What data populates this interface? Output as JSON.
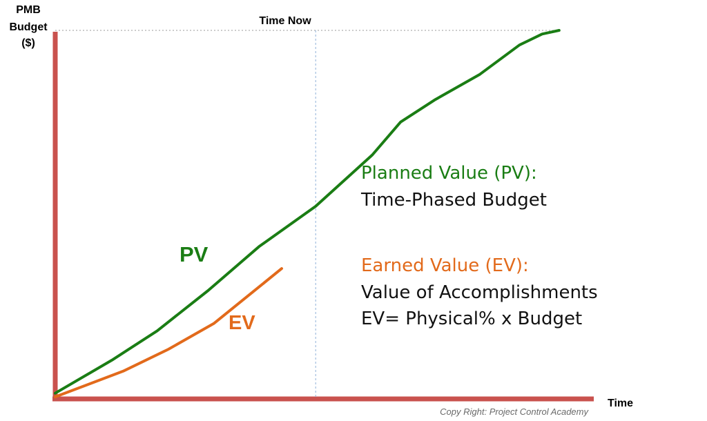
{
  "chart_data": {
    "type": "line",
    "title": "",
    "ylabel_lines": [
      "PMB",
      "Budget",
      "($)"
    ],
    "xlabel": "Time",
    "xlim": [
      0,
      100
    ],
    "ylim": [
      0,
      100
    ],
    "grid": false,
    "time_now": {
      "label": "Time Now",
      "x": 46
    },
    "budget_reference_y": 100,
    "series": [
      {
        "name": "PV",
        "color": "#1a7d14",
        "x": [
          0,
          10,
          18,
          27,
          36,
          46,
          56,
          61,
          67,
          75,
          82,
          86,
          89
        ],
        "y": [
          1,
          10,
          18,
          29,
          41,
          52,
          66,
          75,
          81,
          88,
          96,
          99,
          100
        ]
      },
      {
        "name": "EV",
        "color": "#e26a1b",
        "x": [
          0,
          12,
          20,
          28,
          36,
          40
        ],
        "y": [
          0,
          7,
          13,
          20,
          30,
          35
        ]
      }
    ],
    "annotations": [
      {
        "id": "pv-tag",
        "text": "PV",
        "color": "#1a7d14"
      },
      {
        "id": "ev-tag",
        "text": "EV",
        "color": "#e26a1b"
      },
      {
        "id": "pv-title",
        "text": "Planned Value (PV):",
        "color": "#1a7d14"
      },
      {
        "id": "pv-desc",
        "text": "Time-Phased Budget",
        "color": "#111111"
      },
      {
        "id": "ev-title",
        "text": "Earned Value (EV):",
        "color": "#e26a1b"
      },
      {
        "id": "ev-desc1",
        "text": "Value of Accomplishments",
        "color": "#111111"
      },
      {
        "id": "ev-desc2",
        "text": "EV= Physical% x Budget",
        "color": "#111111"
      }
    ],
    "copyright": "Copy Right: Project Control Academy",
    "colors": {
      "axis": "#c9524e",
      "time_now_line": "#8fb0d8",
      "reference_line": "#999999"
    }
  }
}
